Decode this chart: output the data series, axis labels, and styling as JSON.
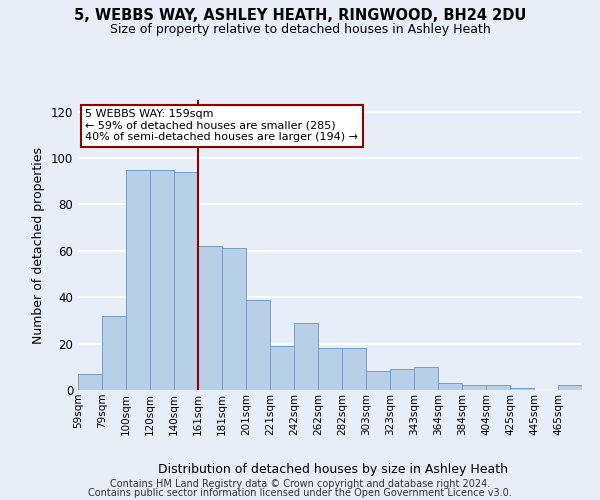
{
  "title_line1": "5, WEBBS WAY, ASHLEY HEATH, RINGWOOD, BH24 2DU",
  "title_line2": "Size of property relative to detached houses in Ashley Heath",
  "xlabel": "Distribution of detached houses by size in Ashley Heath",
  "ylabel": "Number of detached properties",
  "bar_labels": [
    "59sqm",
    "79sqm",
    "100sqm",
    "120sqm",
    "140sqm",
    "161sqm",
    "181sqm",
    "201sqm",
    "221sqm",
    "242sqm",
    "262sqm",
    "282sqm",
    "303sqm",
    "323sqm",
    "343sqm",
    "364sqm",
    "384sqm",
    "404sqm",
    "425sqm",
    "445sqm",
    "465sqm"
  ],
  "bar_heights": [
    7,
    32,
    95,
    95,
    94,
    62,
    61,
    39,
    19,
    29,
    18,
    18,
    8,
    9,
    10,
    3,
    2,
    2,
    1,
    0,
    2
  ],
  "bar_fill": "#b8cfe8",
  "bar_edge": "#6fa0cc",
  "vline_pos": 5,
  "vline_color": "#8b0000",
  "annotation_text": "5 WEBBS WAY: 159sqm\n← 59% of detached houses are smaller (285)\n40% of semi-detached houses are larger (194) →",
  "annotation_box_facecolor": "white",
  "annotation_box_edgecolor": "#8b0000",
  "ylim": [
    0,
    125
  ],
  "yticks": [
    0,
    20,
    40,
    60,
    80,
    100,
    120
  ],
  "bg_color": "#e8eef8",
  "grid_color": "#ffffff",
  "footer_line1": "Contains HM Land Registry data © Crown copyright and database right 2024.",
  "footer_line2": "Contains public sector information licensed under the Open Government Licence v3.0."
}
